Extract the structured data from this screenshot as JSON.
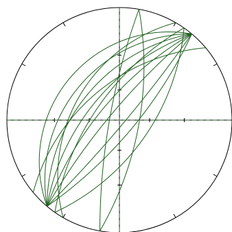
{
  "chart_data": {
    "type": "stereonet",
    "color": "#1f5f1f",
    "planes": [
      {
        "dip_direction": 310,
        "dip": 30
      },
      {
        "dip_direction": 310,
        "dip": 40
      },
      {
        "dip_direction": 310,
        "dip": 50
      },
      {
        "dip_direction": 310,
        "dip": 60
      },
      {
        "dip_direction": 310,
        "dip": 70
      },
      {
        "dip_direction": 310,
        "dip": 80
      },
      {
        "dip_direction": 130,
        "dip": 75
      },
      {
        "dip_direction": 130,
        "dip": 85
      },
      {
        "dip_direction": 280,
        "dip": 80
      },
      {
        "dip_direction": 100,
        "dip": 70
      },
      {
        "dip_direction": 300,
        "dip": 45
      },
      {
        "dip_direction": 320,
        "dip": 55
      },
      {
        "dip_direction": 125,
        "dip": 60
      },
      {
        "dip_direction": 305,
        "dip": 65
      }
    ]
  }
}
